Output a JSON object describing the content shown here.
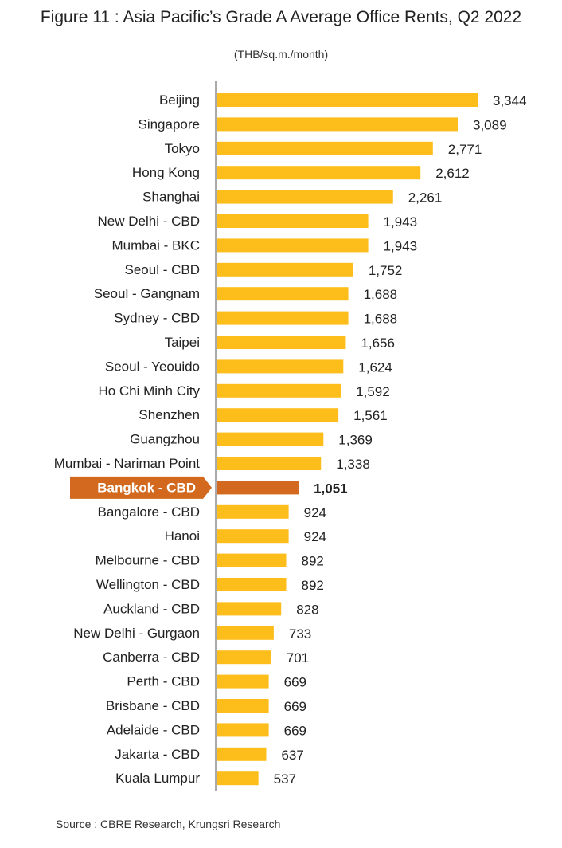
{
  "title": "Figure 11 : Asia Pacific’s Grade A Average Office Rents, Q2 2022",
  "subtitle": "(THB/sq.m./month)",
  "source": "Source : CBRE Research, Krungsri Research",
  "colors": {
    "bar": "#FDBE1C",
    "highlight": "#D2691E",
    "axis": "#555555"
  },
  "chart_data": {
    "type": "bar",
    "orientation": "horizontal",
    "title": "Figure 11 : Asia Pacific’s Grade A Average Office Rents, Q2 2022",
    "ylabel": "(THB/sq.m./month)",
    "highlight": "Bangkok - CBD",
    "categories": [
      "Beijing",
      "Singapore",
      "Tokyo",
      "Hong Kong",
      "Shanghai",
      "New Delhi - CBD",
      "Mumbai - BKC",
      "Seoul - CBD",
      "Seoul - Gangnam",
      "Sydney - CBD",
      "Taipei",
      "Seoul - Yeouido",
      "Ho Chi Minh City",
      "Shenzhen",
      "Guangzhou",
      "Mumbai - Nariman Point",
      "Bangkok - CBD",
      "Bangalore - CBD",
      "Hanoi",
      "Melbourne - CBD",
      "Wellington - CBD",
      "Auckland - CBD",
      "New Delhi - Gurgaon",
      "Canberra - CBD",
      "Perth - CBD",
      "Brisbane - CBD",
      "Adelaide - CBD",
      "Jakarta - CBD",
      "Kuala Lumpur"
    ],
    "values": [
      3344,
      3089,
      2771,
      2612,
      2261,
      1943,
      1943,
      1752,
      1688,
      1688,
      1656,
      1624,
      1592,
      1561,
      1369,
      1338,
      1051,
      924,
      924,
      892,
      892,
      828,
      733,
      701,
      669,
      669,
      669,
      637,
      537
    ],
    "value_labels": [
      "3,344",
      "3,089",
      "2,771",
      "2,612",
      "2,261",
      "1,943",
      "1,943",
      "1,752",
      "1,688",
      "1,688",
      "1,656",
      "1,624",
      "1,592",
      "1,561",
      "1,369",
      "1,338",
      "1,051",
      "924",
      "924",
      "892",
      "892",
      "828",
      "733",
      "701",
      "669",
      "669",
      "669",
      "637",
      "537"
    ],
    "grid": false,
    "legend": "none"
  }
}
